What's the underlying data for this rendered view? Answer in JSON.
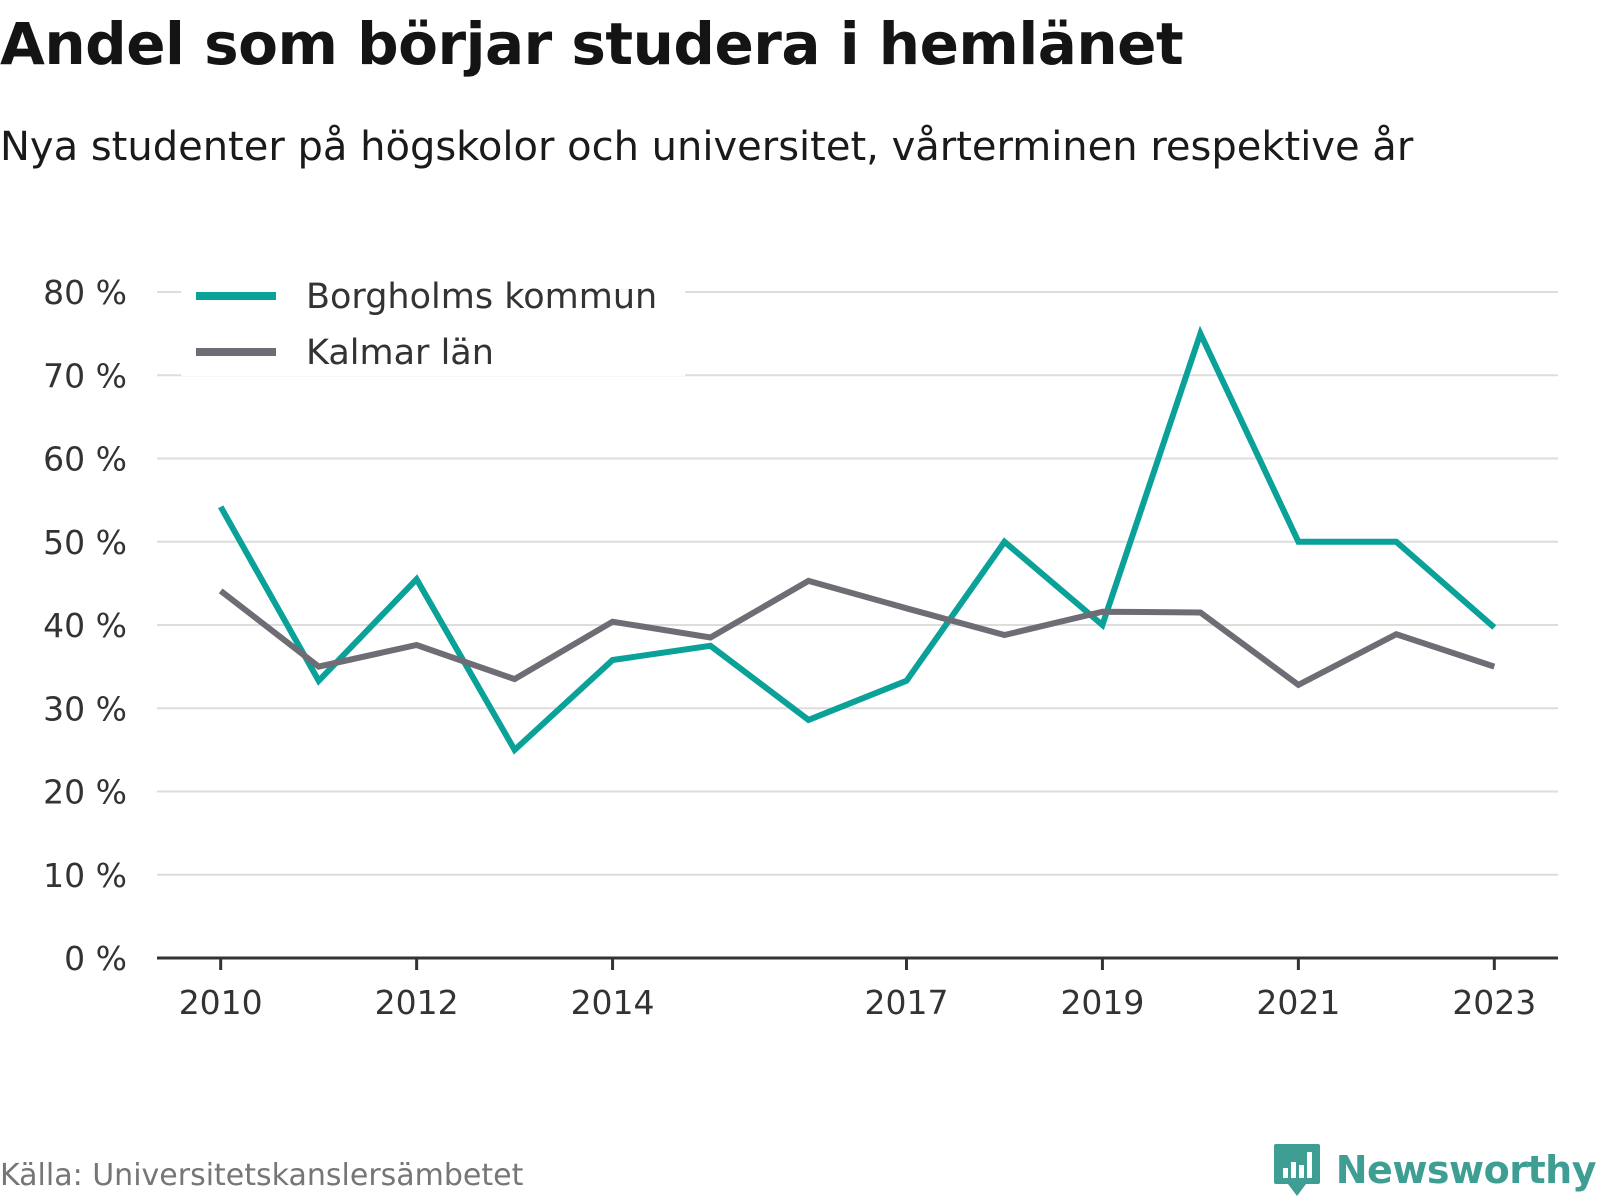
{
  "title": "Andel som börjar studera i hemlänet",
  "subtitle": "Nya studenter på högskolor och universitet, vårterminen respektive år",
  "source": "Källa: Universitetskanslersämbetet",
  "brand": {
    "name": "Newsworthy",
    "icon": "bar-chart-speech-bubble-icon",
    "color": "#3e9e93"
  },
  "chart_data": {
    "type": "line",
    "x": [
      2010,
      2011,
      2012,
      2013,
      2014,
      2015,
      2016,
      2017,
      2018,
      2019,
      2020,
      2021,
      2022,
      2023
    ],
    "x_tick_labels": [
      "2010",
      "2012",
      "2014",
      "2017",
      "2019",
      "2021",
      "2023"
    ],
    "x_tick_values": [
      2010,
      2012,
      2014,
      2017,
      2019,
      2021,
      2023
    ],
    "xlim": [
      2009.35,
      2023.65
    ],
    "ylim": [
      0,
      80
    ],
    "y_ticks": [
      0,
      10,
      20,
      30,
      40,
      50,
      60,
      70,
      80
    ],
    "y_tick_labels": [
      "0 %",
      "10 %",
      "20 %",
      "30 %",
      "40 %",
      "50 %",
      "60 %",
      "70 %",
      "80 %"
    ],
    "grid": true,
    "legend_position": "top-left",
    "series": [
      {
        "name": "Borgholms kommun",
        "color": "#09a198",
        "values": [
          54.2,
          33.3,
          45.5,
          25.0,
          35.8,
          37.5,
          28.6,
          33.3,
          50.0,
          40.0,
          75.0,
          50.0,
          50.0,
          39.7
        ]
      },
      {
        "name": "Kalmar län",
        "color": "#6e6d75",
        "values": [
          44.1,
          35.0,
          37.6,
          33.5,
          40.4,
          38.5,
          45.3,
          42.0,
          38.8,
          41.6,
          41.5,
          32.8,
          38.9,
          35.0
        ]
      }
    ]
  }
}
